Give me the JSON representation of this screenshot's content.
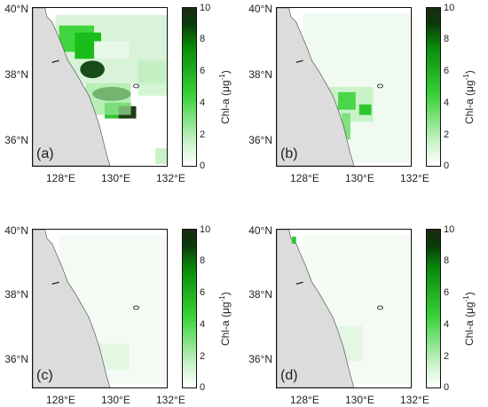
{
  "axes": {
    "lat_labels": [
      "40°N",
      "38°N",
      "36°N"
    ],
    "lon_labels": [
      "128°E",
      "130°E",
      "132°E"
    ]
  },
  "colorbar": {
    "title_prefix": "Chl-a (",
    "title_unit": "μg",
    "title_exp": "-1",
    "title_suffix": ")",
    "ticks": [
      "10",
      "8",
      "6",
      "4",
      "2",
      "0"
    ]
  },
  "panels": [
    {
      "tag": "(a)",
      "bloom": "strong"
    },
    {
      "tag": "(b)",
      "bloom": "moderate"
    },
    {
      "tag": "(c)",
      "bloom": "weak"
    },
    {
      "tag": "(d)",
      "bloom": "weak"
    }
  ],
  "colors": {
    "land": "#dcdcdc",
    "ocean_low": "#eef8ee",
    "green": "#2ecc2e",
    "dark_green": "#1f3a14"
  }
}
